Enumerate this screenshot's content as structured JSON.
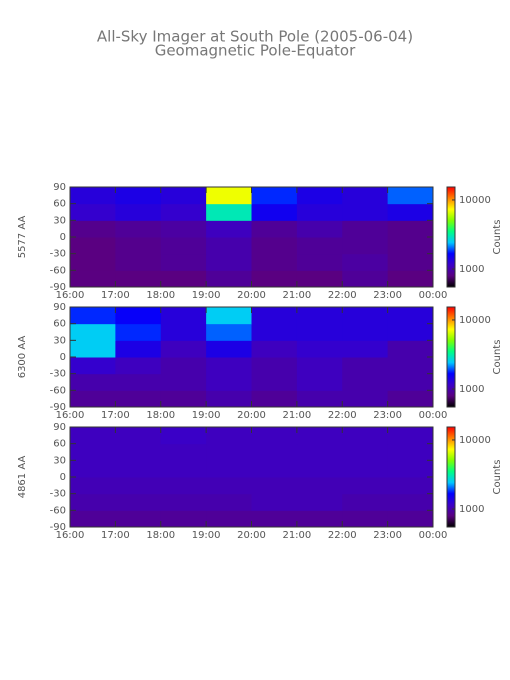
{
  "title": "All-Sky Imager at South Pole (2005-06-04)",
  "subtitle": "Geomagnetic Pole-Equator",
  "colormap": [
    "#000000",
    "#5a0080",
    "#3a00c8",
    "#0000ff",
    "#00c8ff",
    "#00ff80",
    "#80ff00",
    "#ffff00",
    "#ff8000",
    "#ff0000"
  ],
  "chart_data": [
    {
      "type": "heatmap",
      "ylabel": "5577 AA",
      "xticks": [
        "16:00",
        "17:00",
        "18:00",
        "19:00",
        "20:00",
        "21:00",
        "22:00",
        "23:00",
        "00:00"
      ],
      "ylim": [
        -90,
        90
      ],
      "yticks": [
        -90,
        -60,
        -30,
        0,
        30,
        60,
        90
      ],
      "values": [
        [
          800,
          800,
          800,
          900,
          800,
          800,
          900,
          800
        ],
        [
          800,
          850,
          900,
          1000,
          850,
          900,
          950,
          850
        ],
        [
          800,
          850,
          900,
          1000,
          850,
          900,
          900,
          850
        ],
        [
          850,
          900,
          950,
          1100,
          900,
          1000,
          900,
          850
        ],
        [
          1200,
          1300,
          1200,
          3000,
          1500,
          1300,
          1300,
          1400
        ],
        [
          1300,
          1400,
          1300,
          7000,
          1800,
          1400,
          1300,
          2000
        ]
      ],
      "colorbar": {
        "label": "Counts",
        "lim": [
          550,
          15400
        ],
        "ticks": [
          1000,
          10000
        ],
        "log": true
      }
    },
    {
      "type": "heatmap",
      "ylabel": "6300 AA",
      "xticks": [
        "16:00",
        "17:00",
        "18:00",
        "19:00",
        "20:00",
        "21:00",
        "22:00",
        "23:00",
        "00:00"
      ],
      "ylim": [
        -90,
        90
      ],
      "yticks": [
        -90,
        -60,
        -30,
        0,
        30,
        60,
        90
      ],
      "values": [
        [
          900,
          900,
          900,
          1000,
          900,
          1000,
          1000,
          900
        ],
        [
          1000,
          1000,
          1000,
          1100,
          1000,
          1100,
          1000,
          1000
        ],
        [
          1200,
          1100,
          1000,
          1100,
          1000,
          1100,
          1000,
          1000
        ],
        [
          2500,
          1400,
          1100,
          1400,
          1100,
          1200,
          1200,
          1000
        ],
        [
          2500,
          1800,
          1300,
          2000,
          1300,
          1300,
          1300,
          1300
        ],
        [
          1800,
          1600,
          1300,
          2500,
          1300,
          1300,
          1300,
          1300
        ]
      ],
      "colorbar": {
        "label": "Counts",
        "lim": [
          550,
          15400
        ],
        "ticks": [
          1000,
          10000
        ],
        "log": true
      }
    },
    {
      "type": "heatmap",
      "ylabel": "4861 AA",
      "xticks": [
        "16:00",
        "17:00",
        "18:00",
        "19:00",
        "20:00",
        "21:00",
        "22:00",
        "23:00",
        "00:00"
      ],
      "ylim": [
        -90,
        90
      ],
      "yticks": [
        -90,
        -60,
        -30,
        0,
        30,
        60,
        90
      ],
      "values": [
        [
          900,
          900,
          900,
          900,
          900,
          900,
          900,
          900
        ],
        [
          1000,
          1000,
          1000,
          1000,
          1050,
          1050,
          1000,
          1000
        ],
        [
          1050,
          1050,
          1050,
          1050,
          1050,
          1050,
          1050,
          1050
        ],
        [
          1100,
          1100,
          1100,
          1100,
          1100,
          1100,
          1100,
          1100
        ],
        [
          1100,
          1100,
          1100,
          1100,
          1100,
          1100,
          1100,
          1100
        ],
        [
          1100,
          1100,
          1150,
          1100,
          1100,
          1100,
          1100,
          1100
        ]
      ],
      "colorbar": {
        "label": "Counts",
        "lim": [
          550,
          15400
        ],
        "ticks": [
          1000,
          10000
        ],
        "log": true
      }
    }
  ]
}
